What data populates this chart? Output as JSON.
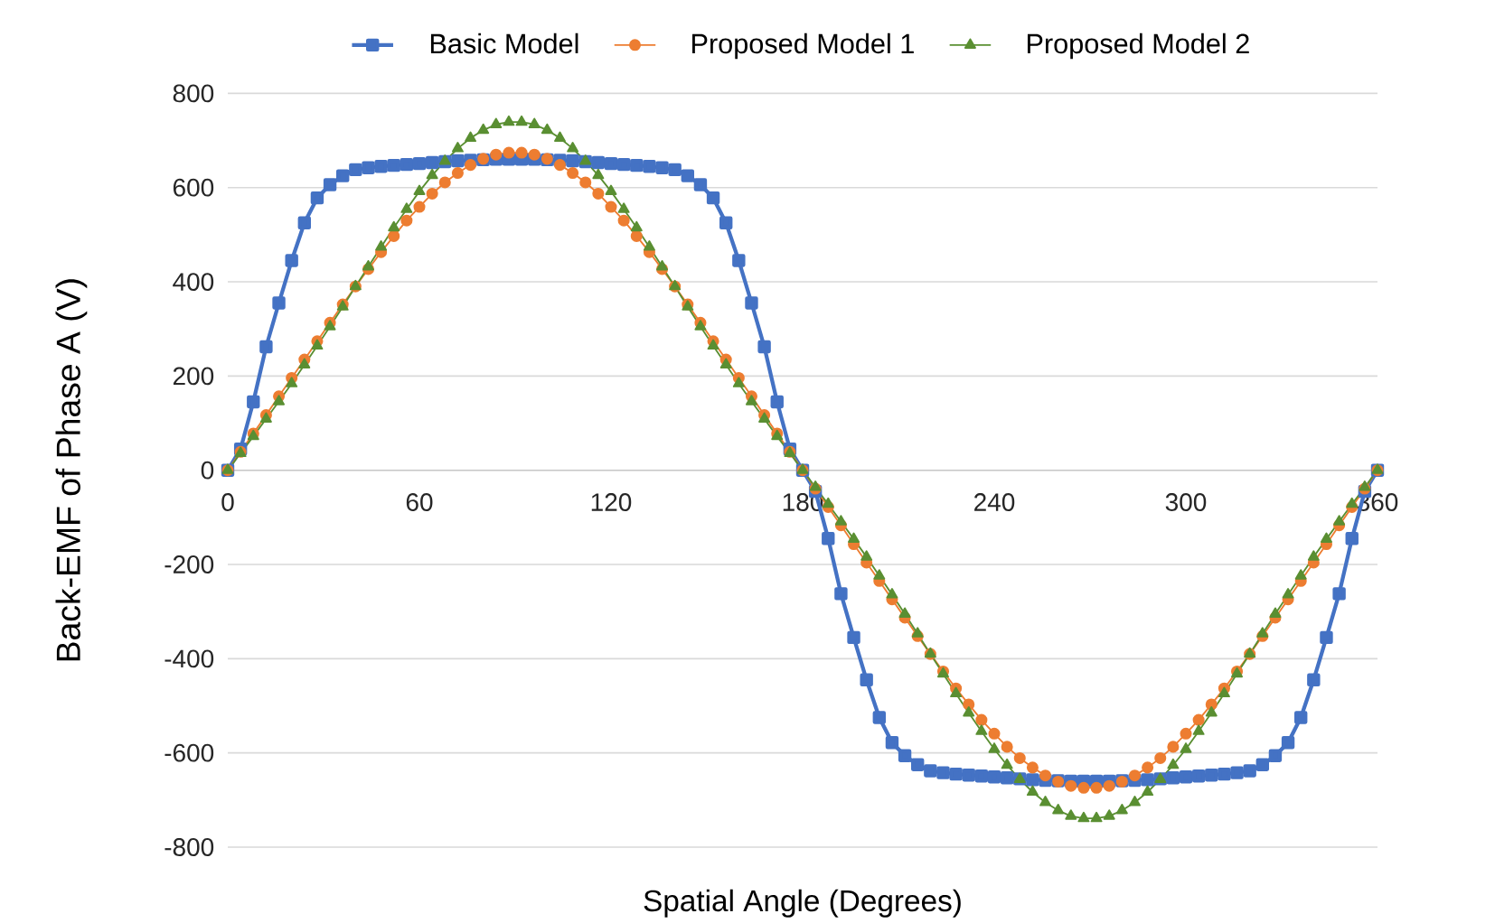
{
  "chart_data": {
    "type": "line",
    "xlabel": "Spatial Angle (Degrees)",
    "ylabel": "Back-EMF of Phase A (V)",
    "x": [
      0,
      4,
      8,
      12,
      16,
      20,
      24,
      28,
      32,
      36,
      40,
      44,
      48,
      52,
      56,
      60,
      64,
      68,
      72,
      76,
      80,
      84,
      88,
      92,
      96,
      100,
      104,
      108,
      112,
      116,
      120,
      124,
      128,
      132,
      136,
      140,
      144,
      148,
      152,
      156,
      160,
      164,
      168,
      172,
      176,
      180,
      184,
      188,
      192,
      196,
      200,
      204,
      208,
      212,
      216,
      220,
      224,
      228,
      232,
      236,
      240,
      244,
      248,
      252,
      256,
      260,
      264,
      268,
      272,
      276,
      280,
      284,
      288,
      292,
      296,
      300,
      304,
      308,
      312,
      316,
      320,
      324,
      328,
      332,
      336,
      340,
      344,
      348,
      352,
      356,
      360
    ],
    "xlim": [
      0,
      360
    ],
    "xticks": [
      0,
      60,
      120,
      180,
      240,
      300,
      360
    ],
    "ylim": [
      -800,
      800
    ],
    "yticks": [
      -800,
      -600,
      -400,
      -200,
      0,
      200,
      400,
      600,
      800
    ],
    "grid": "y",
    "legend": "top",
    "series": [
      {
        "name": "Basic Model",
        "color": "#4472c4",
        "marker": "square",
        "values": [
          0,
          45,
          145,
          262,
          355,
          445,
          525,
          578,
          606,
          625,
          638,
          642,
          645,
          647,
          649,
          651,
          653,
          655,
          657,
          658,
          659,
          660,
          660,
          660,
          660,
          659,
          658,
          657,
          655,
          653,
          651,
          649,
          647,
          645,
          642,
          638,
          625,
          606,
          578,
          525,
          445,
          355,
          262,
          145,
          45,
          0,
          -45,
          -145,
          -262,
          -355,
          -445,
          -525,
          -578,
          -606,
          -625,
          -638,
          -642,
          -645,
          -647,
          -649,
          -651,
          -653,
          -655,
          -657,
          -658,
          -659,
          -660,
          -660,
          -660,
          -660,
          -659,
          -658,
          -657,
          -655,
          -653,
          -651,
          -649,
          -647,
          -645,
          -642,
          -638,
          -625,
          -606,
          -578,
          -525,
          -445,
          -355,
          -262,
          -145,
          -45,
          0
        ]
      },
      {
        "name": "Proposed Model 1",
        "color": "#ed7d31",
        "marker": "circle",
        "values": [
          0,
          39,
          78,
          117,
          157,
          196,
          235,
          274,
          313,
          352,
          390,
          427,
          463,
          497,
          530,
          559,
          587,
          611,
          631,
          648,
          661,
          670,
          674,
          674,
          670,
          661,
          648,
          631,
          611,
          587,
          559,
          530,
          497,
          463,
          427,
          390,
          352,
          313,
          274,
          235,
          196,
          157,
          117,
          78,
          39,
          0,
          -39,
          -78,
          -117,
          -157,
          -196,
          -235,
          -274,
          -313,
          -352,
          -390,
          -427,
          -463,
          -497,
          -530,
          -559,
          -587,
          -611,
          -631,
          -648,
          -661,
          -670,
          -674,
          -674,
          -670,
          -661,
          -648,
          -631,
          -611,
          -587,
          -559,
          -530,
          -497,
          -463,
          -427,
          -390,
          -352,
          -313,
          -274,
          -235,
          -196,
          -157,
          -117,
          -78,
          -39,
          0
        ]
      },
      {
        "name": "Proposed Model 2",
        "color": "#5a8f32",
        "marker": "triangle",
        "values": [
          0,
          36,
          72,
          109,
          146,
          184,
          224,
          264,
          305,
          347,
          390,
          432,
          474,
          515,
          554,
          592,
          626,
          656,
          683,
          705,
          722,
          734,
          739,
          739,
          734,
          722,
          705,
          683,
          656,
          626,
          592,
          554,
          515,
          474,
          432,
          390,
          347,
          305,
          264,
          224,
          184,
          146,
          109,
          72,
          36,
          0,
          -36,
          -72,
          -109,
          -146,
          -184,
          -224,
          -264,
          -305,
          -347,
          -390,
          -432,
          -474,
          -515,
          -554,
          -592,
          -626,
          -656,
          -683,
          -705,
          -722,
          -734,
          -739,
          -739,
          -734,
          -722,
          -705,
          -683,
          -656,
          -626,
          -592,
          -554,
          -515,
          -474,
          -432,
          -390,
          -347,
          -305,
          -264,
          -224,
          -184,
          -146,
          -109,
          -72,
          -36,
          0
        ]
      }
    ]
  }
}
